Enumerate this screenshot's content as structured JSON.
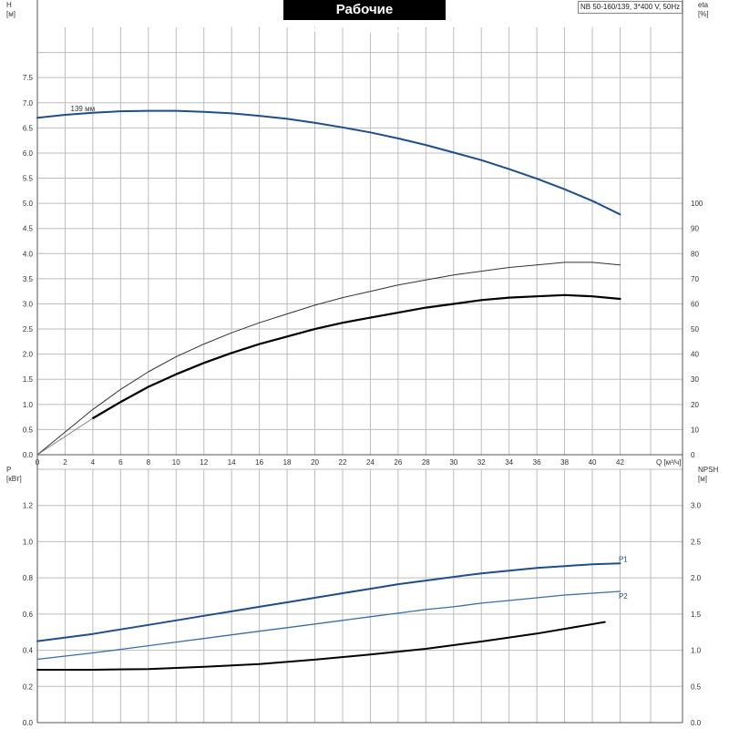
{
  "header": {
    "title": "Рабочие характеристики",
    "model": "NB 50-160/139, 3*400 V, 50Hz"
  },
  "chart_data": [
    {
      "type": "line",
      "panel": "top",
      "xlabel": "Q [м³/ч]",
      "x_ticks": [
        0,
        2,
        4,
        6,
        8,
        10,
        12,
        14,
        16,
        18,
        20,
        22,
        24,
        26,
        28,
        30,
        32,
        34,
        36,
        38,
        40,
        42
      ],
      "xlim": [
        0,
        46.5
      ],
      "ylabel_left": "H",
      "ylabel_left_unit": "[м]",
      "ylim_left": [
        0,
        8.5
      ],
      "y_ticks_left": [
        "0.0",
        "0.5",
        "1.0",
        "1.5",
        "2.0",
        "2.5",
        "3.0",
        "3.5",
        "4.0",
        "4.5",
        "5.0",
        "5.5",
        "6.0",
        "6.5",
        "7.0",
        "7.5"
      ],
      "ylabel_right": "eta",
      "ylabel_right_unit": "[%]",
      "ylim_right": [
        0,
        170
      ],
      "y_ticks_right": [
        "0",
        "10",
        "20",
        "30",
        "40",
        "50",
        "60",
        "70",
        "80",
        "90",
        "100"
      ],
      "grid": true,
      "series": [
        {
          "name": "139 мм",
          "axis": "left",
          "color": "#1f4e8a",
          "x": [
            0,
            2,
            4,
            6,
            8,
            10,
            12,
            14,
            16,
            18,
            20,
            22,
            24,
            26,
            28,
            30,
            32,
            34,
            36,
            38,
            40,
            42
          ],
          "y": [
            6.7,
            6.76,
            6.8,
            6.83,
            6.84,
            6.84,
            6.82,
            6.79,
            6.74,
            6.68,
            6.6,
            6.51,
            6.41,
            6.29,
            6.16,
            6.01,
            5.86,
            5.68,
            5.49,
            5.28,
            5.05,
            4.78
          ]
        },
        {
          "axis": "right",
          "color": "#333333",
          "x": [
            0,
            4,
            6,
            8,
            10,
            12,
            14,
            16,
            18,
            20,
            22,
            24,
            26,
            28,
            30,
            32,
            34,
            36,
            38,
            40,
            42
          ],
          "y": [
            0,
            18,
            26,
            33,
            39,
            44,
            48.5,
            52.5,
            56,
            59.5,
            62.5,
            65,
            67.5,
            69.5,
            71.5,
            73,
            74.5,
            75.5,
            76.5,
            76.5,
            75.5
          ]
        },
        {
          "axis": "right",
          "color": "#000000",
          "x": [
            4,
            6,
            8,
            10,
            12,
            14,
            16,
            18,
            20,
            22,
            24,
            26,
            28,
            30,
            32,
            34,
            36,
            38,
            40,
            42
          ],
          "y": [
            14.5,
            21,
            27,
            32,
            36.5,
            40.5,
            44,
            47,
            50,
            52.5,
            54.5,
            56.5,
            58.5,
            60,
            61.5,
            62.5,
            63,
            63.5,
            63,
            62
          ]
        }
      ],
      "annotations": [
        {
          "text": "139 мм"
        }
      ]
    },
    {
      "type": "line",
      "panel": "bottom",
      "xlim": [
        0,
        46.5
      ],
      "ylabel_left": "P",
      "ylabel_left_unit": "[кВт]",
      "ylim_left": [
        0,
        1.4
      ],
      "y_ticks_left": [
        "0.0",
        "0.2",
        "0.4",
        "0.6",
        "0.8",
        "1.0",
        "1.2"
      ],
      "ylabel_right": "NPSH",
      "ylabel_right_unit": "[м]",
      "ylim_right": [
        0,
        3.5
      ],
      "y_ticks_right": [
        "0.0",
        "0.5",
        "1.0",
        "1.5",
        "2.0",
        "2.5",
        "3.0"
      ],
      "grid": true,
      "series": [
        {
          "name": "P1",
          "axis": "left",
          "color": "#1f4e8a",
          "x": [
            0,
            4,
            6,
            8,
            10,
            12,
            14,
            16,
            18,
            20,
            22,
            24,
            26,
            28,
            30,
            32,
            34,
            36,
            38,
            40,
            42
          ],
          "y": [
            0.45,
            0.49,
            0.515,
            0.54,
            0.565,
            0.59,
            0.615,
            0.64,
            0.665,
            0.69,
            0.715,
            0.74,
            0.765,
            0.785,
            0.805,
            0.825,
            0.84,
            0.855,
            0.865,
            0.875,
            0.88
          ]
        },
        {
          "name": "P2",
          "axis": "left",
          "color": "#3a6ea5",
          "x": [
            0,
            4,
            6,
            8,
            10,
            12,
            14,
            16,
            18,
            20,
            22,
            24,
            26,
            28,
            30,
            32,
            34,
            36,
            38,
            40,
            42
          ],
          "y": [
            0.35,
            0.385,
            0.405,
            0.425,
            0.445,
            0.465,
            0.485,
            0.505,
            0.525,
            0.545,
            0.565,
            0.585,
            0.605,
            0.625,
            0.64,
            0.66,
            0.675,
            0.69,
            0.705,
            0.715,
            0.725
          ]
        },
        {
          "axis": "right",
          "color": "#000000",
          "x": [
            0,
            4,
            8,
            12,
            16,
            20,
            24,
            28,
            32,
            36,
            40.9
          ],
          "y": [
            0.73,
            0.73,
            0.74,
            0.77,
            0.81,
            0.87,
            0.94,
            1.02,
            1.12,
            1.23,
            1.39
          ]
        }
      ],
      "annotations": [
        {
          "text": "P1"
        },
        {
          "text": "P2"
        }
      ]
    }
  ]
}
